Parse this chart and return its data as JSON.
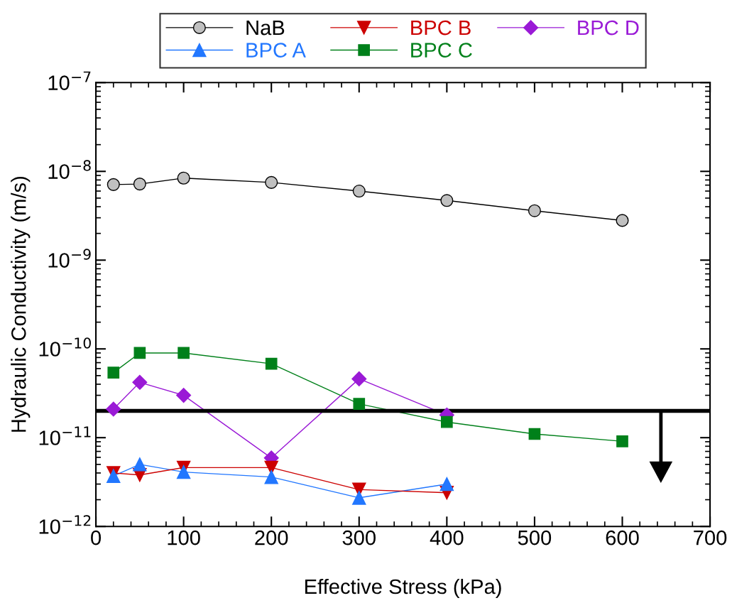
{
  "chart_data": {
    "type": "line",
    "xlabel": "Effective Stress (kPa)",
    "ylabel": "Hydraulic Conductivity (m/s)",
    "xlim": [
      0,
      700
    ],
    "xticks": [
      0,
      100,
      200,
      300,
      400,
      500,
      600,
      700
    ],
    "ylim": [
      1e-12,
      1e-07
    ],
    "log": "y",
    "yticks": [
      {
        "value": 1e-12,
        "label": "10$^{−12}$"
      },
      {
        "value": 1e-11,
        "label": "10$^{−11}$"
      },
      {
        "value": 1e-10,
        "label": "10$^{−10}$"
      },
      {
        "value": 1e-09,
        "label": "10$^{−9}$"
      },
      {
        "value": 1e-08,
        "label": "10$^{−8}$"
      },
      {
        "value": 1e-07,
        "label": "10$^{−7}$"
      }
    ],
    "grid": false,
    "legend": "top",
    "line_style": "solid",
    "series": [
      {
        "name": "NaB",
        "color": "#000000",
        "marker": "circle",
        "x": [
          20,
          50,
          100,
          200,
          300,
          400,
          500,
          600
        ],
        "values": [
          7.1e-09,
          7.2e-09,
          8.4e-09,
          7.5e-09,
          6e-09,
          4.7e-09,
          3.6e-09,
          2.8e-09
        ]
      },
      {
        "name": "BPC A",
        "color": "#2277ff",
        "marker": "triangle",
        "x": [
          20,
          50,
          100,
          200,
          300,
          400
        ],
        "values": [
          3.7e-12,
          5e-12,
          4.1e-12,
          3.6e-12,
          2.1e-12,
          3e-12
        ]
      },
      {
        "name": "BPC B",
        "color": "#cc0000",
        "marker": "triangle_down",
        "x": [
          20,
          50,
          100,
          200,
          300,
          400
        ],
        "values": [
          4e-12,
          3.8e-12,
          4.6e-12,
          4.6e-12,
          2.6e-12,
          2.4e-12
        ]
      },
      {
        "name": "BPC C",
        "color": "#00801a",
        "marker": "square",
        "x": [
          20,
          50,
          100,
          200,
          300,
          400,
          500,
          600
        ],
        "values": [
          5.4e-11,
          9e-11,
          9e-11,
          6.8e-11,
          2.4e-11,
          1.5e-11,
          1.1e-11,
          9.1e-12
        ]
      },
      {
        "name": "BPC D",
        "color": "#9a1ad6",
        "marker": "diamond",
        "x": [
          20,
          50,
          100,
          200,
          300,
          400
        ],
        "values": [
          2.1e-11,
          4.2e-11,
          3e-11,
          5.9e-12,
          4.6e-11,
          1.8e-11
        ]
      }
    ],
    "ref_lines": [
      {
        "axis": "y",
        "value": 2e-11,
        "color": "#000000",
        "line_style": "solid"
      }
    ]
  }
}
